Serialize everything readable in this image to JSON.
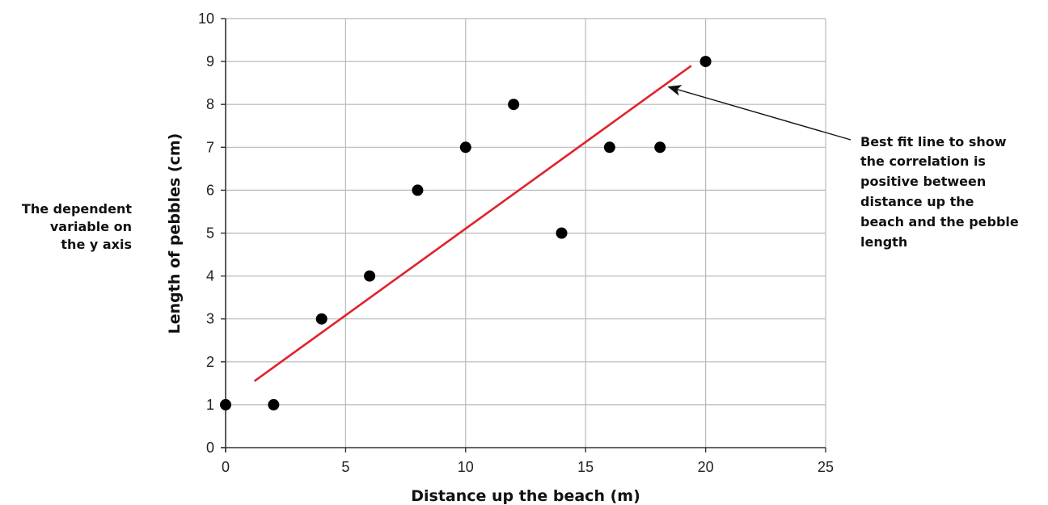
{
  "chart_data": {
    "type": "scatter",
    "xlabel": "Distance up the beach (m)",
    "ylabel": "Length of pebbles (cm)",
    "xlim": [
      0,
      25
    ],
    "ylim": [
      0,
      10
    ],
    "x_ticks": [
      0,
      5,
      10,
      15,
      20,
      25
    ],
    "y_ticks": [
      0,
      1,
      2,
      3,
      4,
      5,
      6,
      7,
      8,
      9,
      10
    ],
    "grid": true,
    "points": [
      {
        "x": 0,
        "y": 1
      },
      {
        "x": 2,
        "y": 1
      },
      {
        "x": 4,
        "y": 3
      },
      {
        "x": 6,
        "y": 4
      },
      {
        "x": 8,
        "y": 6
      },
      {
        "x": 10,
        "y": 7
      },
      {
        "x": 12,
        "y": 8
      },
      {
        "x": 14,
        "y": 5
      },
      {
        "x": 16,
        "y": 7
      },
      {
        "x": 18.1,
        "y": 7
      },
      {
        "x": 20,
        "y": 9
      }
    ],
    "best_fit_line": {
      "x1": 1.2,
      "y1": 1.55,
      "x2": 19.4,
      "y2": 8.9,
      "color": "#e0232b"
    },
    "point_color": "#000000"
  },
  "annotations": {
    "left_note": [
      "The dependent",
      "variable on",
      "the y axis"
    ],
    "right_note": [
      "Best fit line to show",
      "the correlation is",
      "positive between",
      "distance up the",
      "beach and the pebble",
      "length"
    ],
    "arrow_target": {
      "x": 18.5,
      "y": 8.4
    }
  }
}
